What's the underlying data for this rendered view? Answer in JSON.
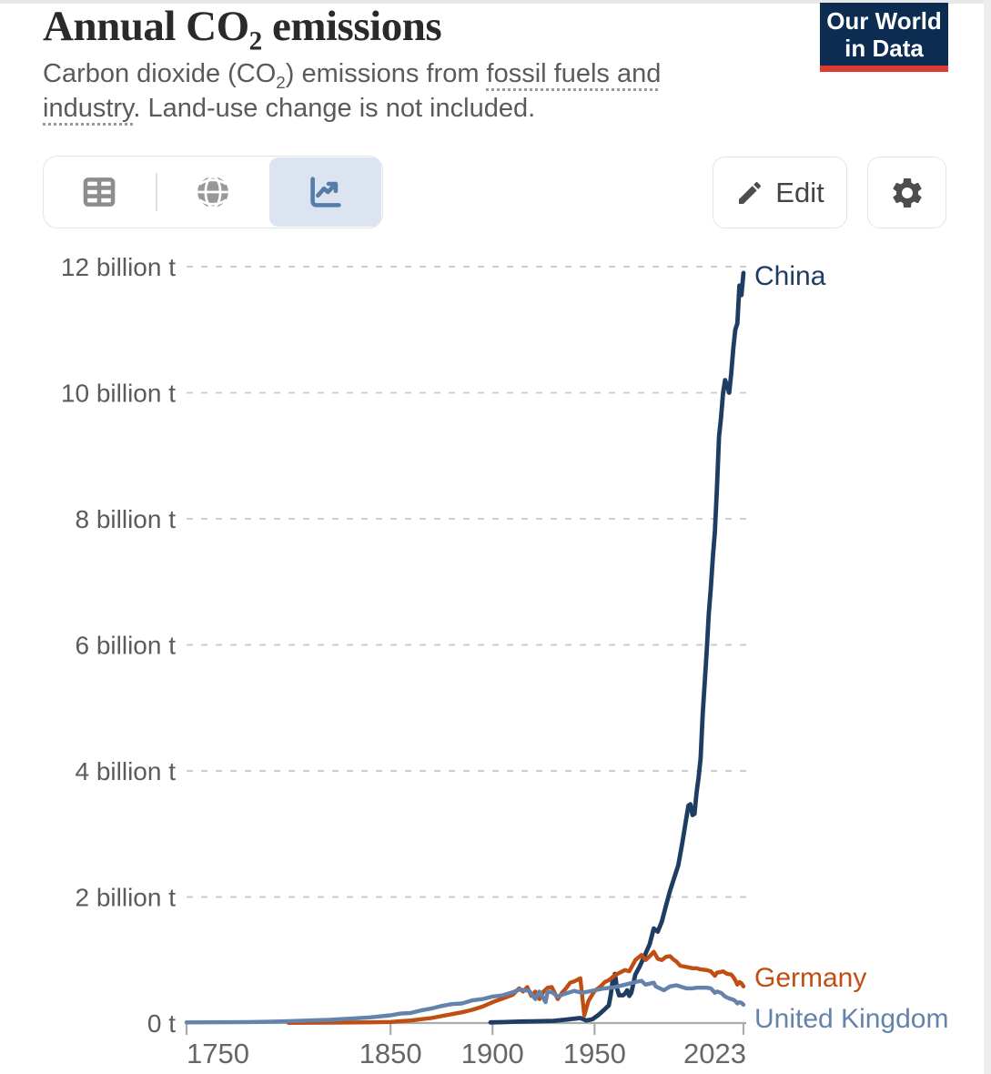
{
  "header": {
    "title": {
      "pre": "Annual CO",
      "sub": "2",
      "post": " emissions"
    },
    "subtitle": {
      "part1": "Carbon dioxide (CO",
      "sub": "2",
      "part2": ") emissions from ",
      "link": "fossil fuels and industry",
      "part3": ". Land-use change is not included."
    },
    "logo": {
      "line1": "Our World",
      "line2": "in Data",
      "bg_color": "#0c2c52",
      "stripe_color": "#dd3b2f"
    }
  },
  "toolbar": {
    "views": [
      {
        "name": "table-view",
        "icon": "table-icon",
        "selected": false
      },
      {
        "name": "map-view",
        "icon": "globe-icon",
        "selected": false
      },
      {
        "name": "chart-view",
        "icon": "line-chart-icon",
        "selected": true
      }
    ],
    "selected_bg": "#dbe4f0",
    "edit_label": "Edit"
  },
  "chart_data": {
    "type": "line",
    "title": "Annual CO2 emissions",
    "xlabel": "",
    "ylabel": "",
    "unit": "billion t",
    "xlim": [
      1750,
      2023
    ],
    "ylim": [
      0,
      12
    ],
    "grid": "horizontal-dashed",
    "legend": "line-end-labels",
    "x_ticks": [
      {
        "v": 1750,
        "label": "1750"
      },
      {
        "v": 1850,
        "label": "1850"
      },
      {
        "v": 1900,
        "label": "1900"
      },
      {
        "v": 1950,
        "label": "1950"
      },
      {
        "v": 2023,
        "label": "2023"
      }
    ],
    "y_ticks": [
      {
        "v": 0,
        "label": "0 t"
      },
      {
        "v": 2,
        "label": "2 billion t"
      },
      {
        "v": 4,
        "label": "4 billion t"
      },
      {
        "v": 6,
        "label": "6 billion t"
      },
      {
        "v": 8,
        "label": "8 billion t"
      },
      {
        "v": 10,
        "label": "10 billion t"
      },
      {
        "v": 12,
        "label": "12 billion t"
      }
    ],
    "series": [
      {
        "name": "China",
        "color": "#1d3d63",
        "label_dy": 3,
        "stroke_width": 4.8,
        "points": [
          [
            1899,
            0.01
          ],
          [
            1905,
            0.015
          ],
          [
            1910,
            0.02
          ],
          [
            1915,
            0.024
          ],
          [
            1920,
            0.027
          ],
          [
            1925,
            0.03
          ],
          [
            1930,
            0.035
          ],
          [
            1935,
            0.05
          ],
          [
            1940,
            0.07
          ],
          [
            1943,
            0.08
          ],
          [
            1946,
            0.04
          ],
          [
            1949,
            0.06
          ],
          [
            1952,
            0.13
          ],
          [
            1955,
            0.22
          ],
          [
            1957,
            0.28
          ],
          [
            1958,
            0.46
          ],
          [
            1959,
            0.7
          ],
          [
            1960,
            0.78
          ],
          [
            1961,
            0.55
          ],
          [
            1962,
            0.44
          ],
          [
            1964,
            0.44
          ],
          [
            1965,
            0.47
          ],
          [
            1966,
            0.52
          ],
          [
            1967,
            0.43
          ],
          [
            1968,
            0.48
          ],
          [
            1970,
            0.77
          ],
          [
            1972,
            0.89
          ],
          [
            1975,
            1.1
          ],
          [
            1977,
            1.25
          ],
          [
            1979,
            1.5
          ],
          [
            1981,
            1.45
          ],
          [
            1983,
            1.61
          ],
          [
            1985,
            1.86
          ],
          [
            1987,
            2.1
          ],
          [
            1989,
            2.3
          ],
          [
            1991,
            2.5
          ],
          [
            1993,
            2.85
          ],
          [
            1995,
            3.25
          ],
          [
            1996,
            3.45
          ],
          [
            1997,
            3.47
          ],
          [
            1998,
            3.3
          ],
          [
            1999,
            3.32
          ],
          [
            2000,
            3.65
          ],
          [
            2001,
            3.9
          ],
          [
            2002,
            4.2
          ],
          [
            2003,
            4.9
          ],
          [
            2004,
            5.4
          ],
          [
            2005,
            5.9
          ],
          [
            2006,
            6.5
          ],
          [
            2007,
            6.9
          ],
          [
            2008,
            7.4
          ],
          [
            2009,
            7.8
          ],
          [
            2010,
            8.5
          ],
          [
            2011,
            9.3
          ],
          [
            2012,
            9.6
          ],
          [
            2013,
            10.0
          ],
          [
            2014,
            10.2
          ],
          [
            2015,
            10.1
          ],
          [
            2016,
            10.0
          ],
          [
            2017,
            10.3
          ],
          [
            2018,
            10.7
          ],
          [
            2019,
            11.0
          ],
          [
            2020,
            11.1
          ],
          [
            2021,
            11.7
          ],
          [
            2022,
            11.55
          ],
          [
            2023,
            11.9
          ]
        ]
      },
      {
        "name": "Germany",
        "color": "#c04e13",
        "label_dy": -10,
        "stroke_width": 4.4,
        "points": [
          [
            1800,
            0.003
          ],
          [
            1820,
            0.006
          ],
          [
            1840,
            0.012
          ],
          [
            1850,
            0.017
          ],
          [
            1855,
            0.03
          ],
          [
            1860,
            0.04
          ],
          [
            1865,
            0.06
          ],
          [
            1870,
            0.08
          ],
          [
            1875,
            0.11
          ],
          [
            1880,
            0.14
          ],
          [
            1885,
            0.17
          ],
          [
            1890,
            0.21
          ],
          [
            1895,
            0.26
          ],
          [
            1900,
            0.33
          ],
          [
            1905,
            0.39
          ],
          [
            1910,
            0.45
          ],
          [
            1913,
            0.55
          ],
          [
            1915,
            0.5
          ],
          [
            1917,
            0.57
          ],
          [
            1919,
            0.43
          ],
          [
            1921,
            0.5
          ],
          [
            1923,
            0.38
          ],
          [
            1925,
            0.5
          ],
          [
            1927,
            0.56
          ],
          [
            1929,
            0.57
          ],
          [
            1932,
            0.38
          ],
          [
            1934,
            0.48
          ],
          [
            1936,
            0.55
          ],
          [
            1938,
            0.64
          ],
          [
            1940,
            0.66
          ],
          [
            1943,
            0.71
          ],
          [
            1945,
            0.12
          ],
          [
            1947,
            0.35
          ],
          [
            1950,
            0.51
          ],
          [
            1953,
            0.58
          ],
          [
            1955,
            0.65
          ],
          [
            1957,
            0.68
          ],
          [
            1960,
            0.76
          ],
          [
            1963,
            0.81
          ],
          [
            1965,
            0.84
          ],
          [
            1967,
            0.82
          ],
          [
            1970,
            1.0
          ],
          [
            1973,
            1.08
          ],
          [
            1975,
            1.0
          ],
          [
            1977,
            1.06
          ],
          [
            1979,
            1.13
          ],
          [
            1981,
            1.02
          ],
          [
            1983,
            1.0
          ],
          [
            1985,
            1.05
          ],
          [
            1987,
            1.06
          ],
          [
            1989,
            1.0
          ],
          [
            1990,
            0.98
          ],
          [
            1992,
            0.91
          ],
          [
            1995,
            0.89
          ],
          [
            1998,
            0.87
          ],
          [
            2000,
            0.87
          ],
          [
            2002,
            0.85
          ],
          [
            2005,
            0.84
          ],
          [
            2007,
            0.82
          ],
          [
            2009,
            0.75
          ],
          [
            2010,
            0.8
          ],
          [
            2012,
            0.81
          ],
          [
            2013,
            0.82
          ],
          [
            2015,
            0.78
          ],
          [
            2017,
            0.77
          ],
          [
            2018,
            0.73
          ],
          [
            2019,
            0.68
          ],
          [
            2020,
            0.61
          ],
          [
            2021,
            0.65
          ],
          [
            2022,
            0.63
          ],
          [
            2023,
            0.58
          ]
        ]
      },
      {
        "name": "United Kingdom",
        "color": "#6382ac",
        "label_dy": 15,
        "stroke_width": 4.4,
        "points": [
          [
            1750,
            0.01
          ],
          [
            1760,
            0.011
          ],
          [
            1770,
            0.013
          ],
          [
            1780,
            0.016
          ],
          [
            1790,
            0.02
          ],
          [
            1800,
            0.03
          ],
          [
            1810,
            0.04
          ],
          [
            1820,
            0.05
          ],
          [
            1830,
            0.07
          ],
          [
            1840,
            0.09
          ],
          [
            1850,
            0.123
          ],
          [
            1855,
            0.15
          ],
          [
            1860,
            0.16
          ],
          [
            1865,
            0.2
          ],
          [
            1870,
            0.23
          ],
          [
            1875,
            0.27
          ],
          [
            1880,
            0.3
          ],
          [
            1885,
            0.31
          ],
          [
            1890,
            0.36
          ],
          [
            1895,
            0.38
          ],
          [
            1900,
            0.42
          ],
          [
            1905,
            0.44
          ],
          [
            1910,
            0.49
          ],
          [
            1913,
            0.53
          ],
          [
            1916,
            0.52
          ],
          [
            1918,
            0.51
          ],
          [
            1921,
            0.38
          ],
          [
            1923,
            0.5
          ],
          [
            1926,
            0.33
          ],
          [
            1927,
            0.5
          ],
          [
            1929,
            0.49
          ],
          [
            1932,
            0.42
          ],
          [
            1935,
            0.46
          ],
          [
            1938,
            0.49
          ],
          [
            1940,
            0.51
          ],
          [
            1944,
            0.48
          ],
          [
            1947,
            0.5
          ],
          [
            1950,
            0.52
          ],
          [
            1955,
            0.55
          ],
          [
            1960,
            0.57
          ],
          [
            1965,
            0.61
          ],
          [
            1970,
            0.65
          ],
          [
            1973,
            0.67
          ],
          [
            1975,
            0.61
          ],
          [
            1979,
            0.64
          ],
          [
            1980,
            0.58
          ],
          [
            1984,
            0.52
          ],
          [
            1987,
            0.58
          ],
          [
            1990,
            0.6
          ],
          [
            1992,
            0.58
          ],
          [
            1995,
            0.55
          ],
          [
            1998,
            0.55
          ],
          [
            2000,
            0.56
          ],
          [
            2003,
            0.56
          ],
          [
            2005,
            0.56
          ],
          [
            2007,
            0.55
          ],
          [
            2009,
            0.48
          ],
          [
            2010,
            0.5
          ],
          [
            2012,
            0.48
          ],
          [
            2014,
            0.42
          ],
          [
            2016,
            0.39
          ],
          [
            2018,
            0.37
          ],
          [
            2019,
            0.35
          ],
          [
            2020,
            0.31
          ],
          [
            2021,
            0.33
          ],
          [
            2022,
            0.32
          ],
          [
            2023,
            0.29
          ]
        ]
      }
    ]
  }
}
